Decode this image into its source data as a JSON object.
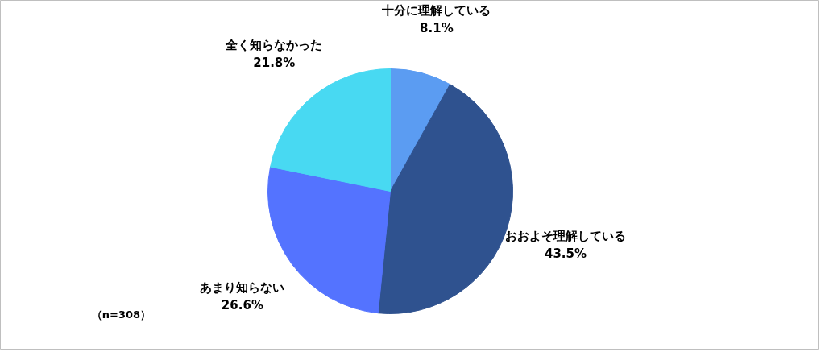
{
  "chart_data": {
    "type": "pie",
    "categories": [
      "十分に理解している",
      "おおよそ理解している",
      "あまり知らない",
      "全く知らなかった"
    ],
    "values": [
      8.1,
      43.5,
      26.6,
      21.8
    ],
    "colors": [
      "#5b9cf2",
      "#2f528f",
      "#5473ff",
      "#48d9f2"
    ],
    "value_labels": [
      "8.1%",
      "43.5%",
      "26.6%",
      "21.8%"
    ],
    "annotations": [
      "（n=308）"
    ]
  }
}
